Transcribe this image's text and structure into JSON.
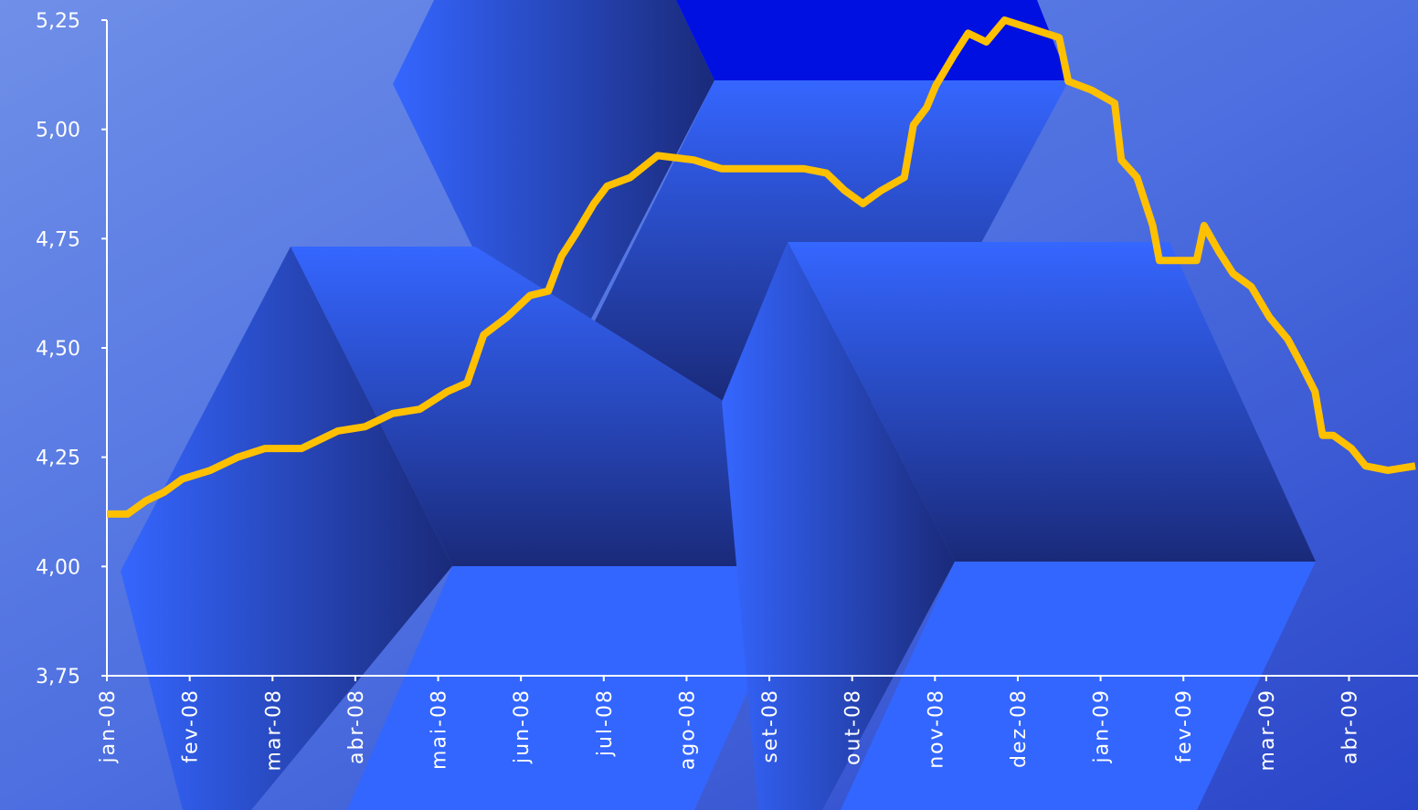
{
  "chart_data": {
    "type": "line",
    "x": [
      0,
      0.25,
      0.47,
      0.69,
      0.91,
      1.25,
      1.58,
      1.91,
      2.35,
      2.79,
      3.12,
      3.45,
      3.78,
      4.11,
      4.35,
      4.55,
      4.83,
      5.11,
      5.33,
      5.49,
      5.66,
      5.88,
      6.04,
      6.32,
      6.65,
      7.09,
      7.42,
      7.97,
      8.42,
      8.69,
      8.91,
      9.13,
      9.35,
      9.63,
      9.74,
      9.9,
      10.01,
      10.23,
      10.4,
      10.62,
      10.84,
      11.17,
      11.5,
      11.61,
      11.89,
      12.17,
      12.25,
      12.44,
      12.63,
      12.71,
      13.16,
      13.25,
      13.43,
      13.6,
      13.82,
      14.04,
      14.26,
      14.43,
      14.59,
      14.68,
      14.81,
      15.03,
      15.2,
      15.47,
      15.8
    ],
    "series": [
      {
        "color": "#ffc000",
        "values": [
          4.12,
          4.12,
          4.15,
          4.17,
          4.2,
          4.22,
          4.25,
          4.27,
          4.27,
          4.31,
          4.32,
          4.35,
          4.36,
          4.4,
          4.42,
          4.53,
          4.57,
          4.62,
          4.63,
          4.71,
          4.76,
          4.83,
          4.87,
          4.89,
          4.94,
          4.93,
          4.91,
          4.91,
          4.91,
          4.9,
          4.86,
          4.83,
          4.86,
          4.89,
          5.01,
          5.05,
          5.1,
          5.17,
          5.22,
          5.2,
          5.25,
          5.23,
          5.21,
          5.11,
          5.09,
          5.06,
          4.93,
          4.89,
          4.78,
          4.7,
          4.7,
          4.78,
          4.72,
          4.67,
          4.64,
          4.57,
          4.52,
          4.46,
          4.4,
          4.3,
          4.3,
          4.27,
          4.23,
          4.22,
          4.23
        ]
      }
    ],
    "xlim": [
      0,
      15.8
    ],
    "xticks": [
      {
        "value": 0,
        "label": "jan-08"
      },
      {
        "value": 1,
        "label": "fev-08"
      },
      {
        "value": 2,
        "label": "mar-08"
      },
      {
        "value": 3,
        "label": "abr-08"
      },
      {
        "value": 4,
        "label": "mai-08"
      },
      {
        "value": 5,
        "label": "jun-08"
      },
      {
        "value": 6,
        "label": "jul-08"
      },
      {
        "value": 7,
        "label": "ago-08"
      },
      {
        "value": 8,
        "label": "set-08"
      },
      {
        "value": 9,
        "label": "out-08"
      },
      {
        "value": 10,
        "label": "nov-08"
      },
      {
        "value": 11,
        "label": "dez-08"
      },
      {
        "value": 12,
        "label": "jan-09"
      },
      {
        "value": 13,
        "label": "fev-09"
      },
      {
        "value": 14,
        "label": "mar-09"
      },
      {
        "value": 15,
        "label": "abr-09"
      }
    ],
    "ylim": [
      3.75,
      5.25
    ],
    "yticks": [
      {
        "value": 3.75,
        "label": "3,75"
      },
      {
        "value": 4.0,
        "label": "4,00"
      },
      {
        "value": 4.25,
        "label": "4,25"
      },
      {
        "value": 4.5,
        "label": "4,50"
      },
      {
        "value": 4.75,
        "label": "4,75"
      },
      {
        "value": 5.0,
        "label": "5,00"
      },
      {
        "value": 5.25,
        "label": "5,25"
      }
    ]
  }
}
